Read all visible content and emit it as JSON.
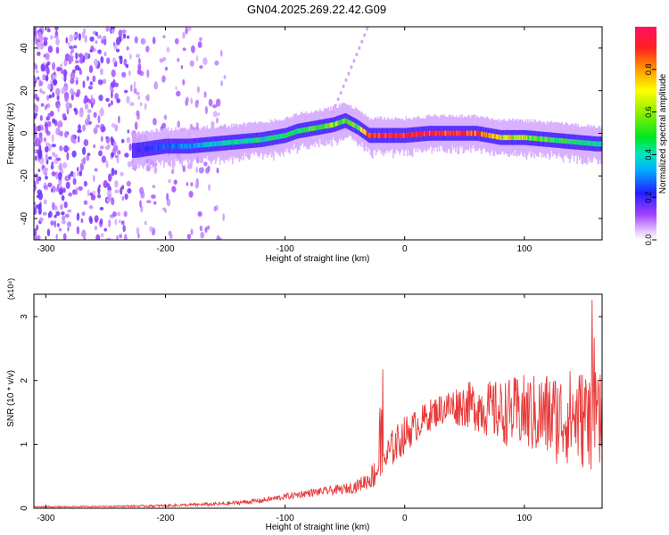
{
  "title": "GN04.2025.269.22.42.G09",
  "colors": {
    "spectrum_purple": "#7b00e6",
    "ridge_blue": "#1a2aff",
    "ridge_cyan": "#00e6e6",
    "ridge_green": "#33e633",
    "ridge_red": "#ff2020",
    "snr_line": "#e83a3a"
  },
  "chart_data": [
    {
      "type": "heatmap",
      "panel": "top",
      "xlabel": "Height of straight line (km)",
      "ylabel": "Frequency (Hz)",
      "xlim": [
        -310,
        165
      ],
      "ylim": [
        -50,
        50
      ],
      "xticks": [
        -300,
        -200,
        -100,
        0,
        100
      ],
      "yticks": [
        -40,
        -20,
        0,
        20,
        40
      ],
      "xtick_labels": [
        "-300",
        "-200",
        "-100",
        "0",
        "100"
      ],
      "ytick_labels": [
        "-40",
        "-20",
        "0",
        "20",
        "40"
      ],
      "colorbar": {
        "label": "Normalized spectral amplitude",
        "range": [
          0,
          1
        ],
        "ticks": [
          0.0,
          0.2,
          0.4,
          0.6,
          0.8
        ],
        "tick_labels": [
          "0.0",
          "0.2",
          "0.4",
          "0.6",
          "0.8"
        ]
      },
      "ridge": {
        "x": [
          -225,
          -200,
          -180,
          -160,
          -140,
          -120,
          -100,
          -90,
          -80,
          -70,
          -60,
          -50,
          -40,
          -30,
          -20,
          -10,
          0,
          20,
          40,
          60,
          80,
          100,
          120,
          140,
          160
        ],
        "freq": [
          -8,
          -6,
          -6,
          -5,
          -4,
          -3,
          -1,
          1,
          2,
          3,
          4,
          6,
          3,
          -1,
          -1,
          -1,
          -1,
          0,
          0,
          0,
          -2,
          -2,
          -3,
          -4,
          -5
        ],
        "amplitude": [
          0.2,
          0.3,
          0.35,
          0.4,
          0.45,
          0.45,
          0.5,
          0.5,
          0.55,
          0.55,
          0.6,
          0.6,
          0.55,
          0.9,
          0.9,
          0.95,
          0.95,
          0.95,
          0.9,
          0.85,
          0.7,
          0.6,
          0.55,
          0.5,
          0.45
        ]
      }
    },
    {
      "type": "line",
      "panel": "bottom",
      "xlabel": "Height of straight line (km)",
      "ylabel": "SNR (10 * v/v)",
      "y_multiplier": "(x10⁴)",
      "xlim": [
        -310,
        165
      ],
      "ylim": [
        0,
        3.35
      ],
      "xticks": [
        -300,
        -200,
        -100,
        0,
        100
      ],
      "yticks": [
        0,
        1,
        2,
        3
      ],
      "xtick_labels": [
        "-300",
        "-200",
        "-100",
        "0",
        "100"
      ],
      "ytick_labels": [
        "0",
        "1",
        "2",
        "3"
      ],
      "series": [
        {
          "x": [
            -310,
            -250,
            -200,
            -150,
            -120,
            -100,
            -80,
            -60,
            -50,
            -40,
            -30,
            -25,
            -20,
            -15,
            -10,
            -5,
            0,
            10,
            20,
            30,
            40,
            50,
            60,
            70,
            80,
            90,
            100,
            110,
            120,
            130,
            140,
            150,
            160,
            165
          ],
          "y": [
            0.02,
            0.03,
            0.04,
            0.07,
            0.12,
            0.18,
            0.24,
            0.28,
            0.3,
            0.35,
            0.45,
            0.55,
            0.75,
            0.8,
            0.95,
            1.05,
            1.15,
            1.3,
            1.45,
            1.55,
            1.6,
            1.62,
            1.6,
            1.55,
            1.5,
            1.5,
            1.5,
            1.45,
            1.45,
            1.4,
            1.45,
            1.4,
            1.35,
            1.3
          ],
          "noise_amplitude": [
            0.01,
            0.01,
            0.02,
            0.03,
            0.04,
            0.05,
            0.06,
            0.07,
            0.08,
            0.1,
            0.15,
            0.25,
            0.45,
            0.3,
            0.3,
            0.3,
            0.3,
            0.25,
            0.25,
            0.25,
            0.3,
            0.35,
            0.4,
            0.45,
            0.5,
            0.55,
            0.6,
            0.65,
            0.7,
            0.75,
            0.75,
            0.8,
            0.8,
            0.8
          ],
          "color": "#e83a3a"
        }
      ]
    }
  ]
}
